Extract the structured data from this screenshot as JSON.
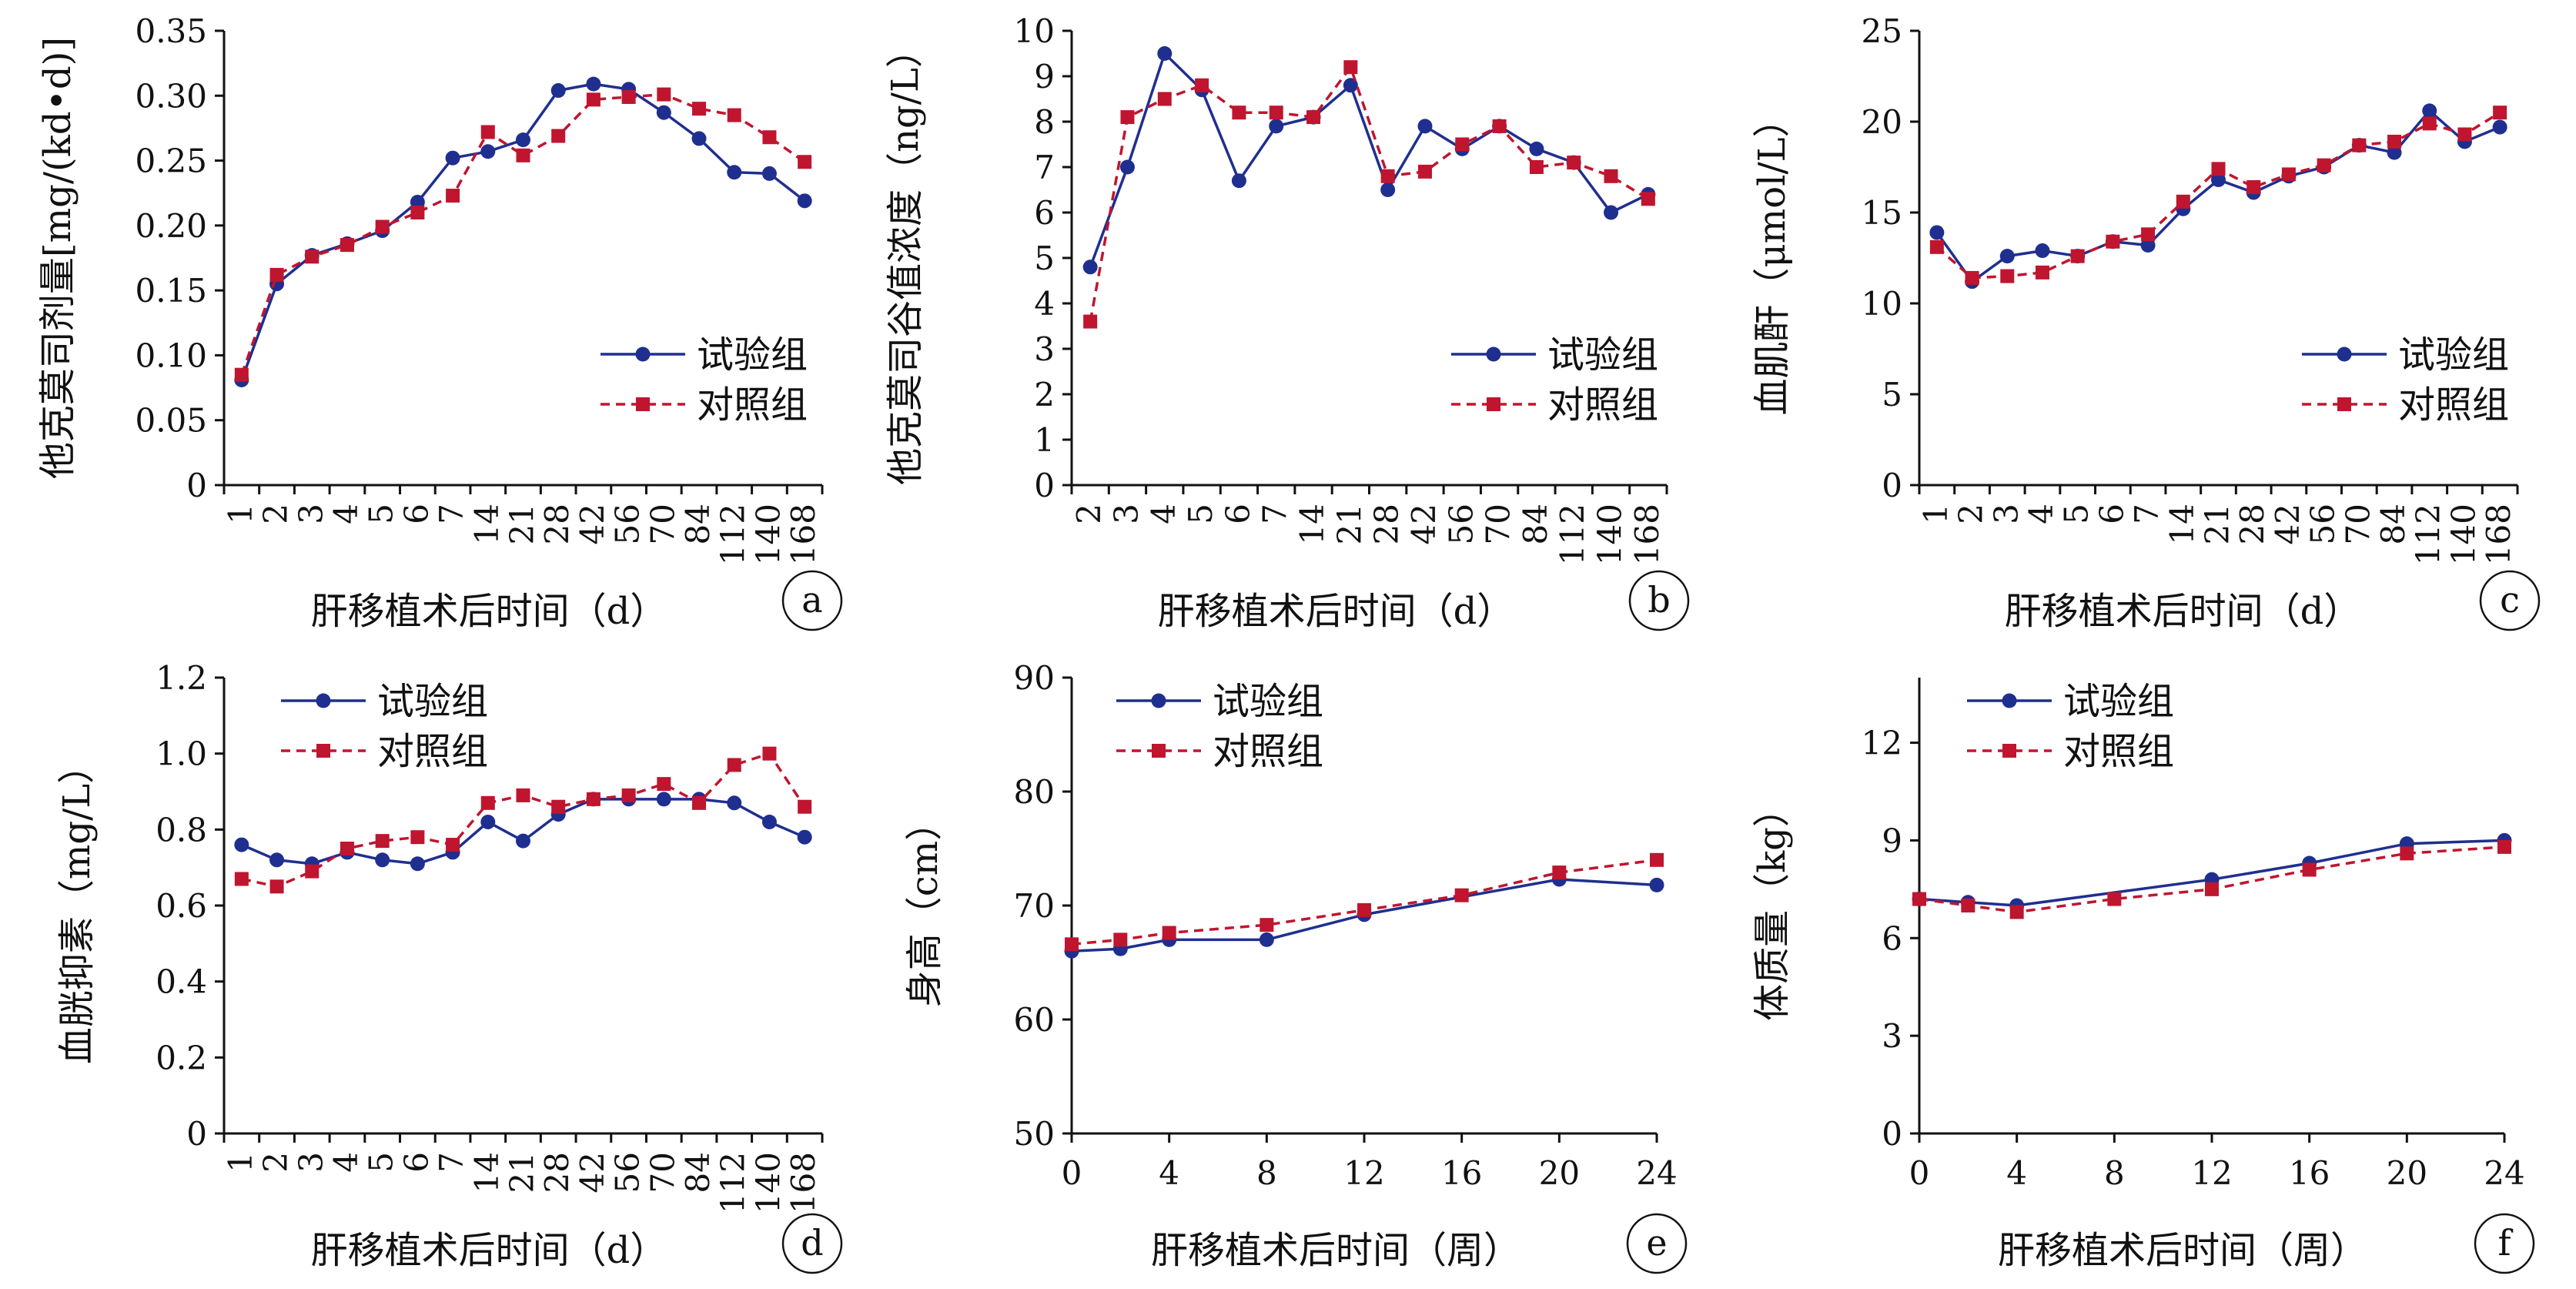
{
  "colors": {
    "test": "#1f2f8f",
    "control": "#c0152f",
    "axis": "#111111"
  },
  "legend": {
    "test": "试验组",
    "control": "对照组"
  },
  "chart_data": [
    {
      "id": "a",
      "type": "line",
      "ylabel": "他克莫司剂量[mg/(kd•d)]",
      "xlabel": "肝移植术后时间（d）",
      "categories": [
        "1",
        "2",
        "3",
        "4",
        "5",
        "6",
        "7",
        "14",
        "21",
        "28",
        "42",
        "56",
        "70",
        "84",
        "112",
        "140",
        "168"
      ],
      "ylim": [
        0,
        0.35
      ],
      "yticks": [
        "0",
        "0.05",
        "0.10",
        "0.15",
        "0.20",
        "0.25",
        "0.30",
        "0.35"
      ],
      "series": [
        {
          "name": "试验组",
          "values": [
            0.081,
            0.155,
            0.177,
            0.186,
            0.196,
            0.218,
            0.252,
            0.257,
            0.266,
            0.304,
            0.309,
            0.305,
            0.287,
            0.267,
            0.241,
            0.24,
            0.219
          ]
        },
        {
          "name": "对照组",
          "values": [
            0.085,
            0.162,
            0.176,
            0.185,
            0.199,
            0.21,
            0.223,
            0.272,
            0.254,
            0.269,
            0.297,
            0.299,
            0.301,
            0.29,
            0.285,
            0.268,
            0.249
          ]
        }
      ]
    },
    {
      "id": "b",
      "type": "line",
      "ylabel": "他克莫司谷值浓度（ng/L）",
      "xlabel": "肝移植术后时间（d）",
      "categories": [
        "2",
        "3",
        "4",
        "5",
        "6",
        "7",
        "14",
        "21",
        "28",
        "42",
        "56",
        "70",
        "84",
        "112",
        "140",
        "168"
      ],
      "ylim": [
        0,
        10
      ],
      "yticks": [
        "0",
        "1",
        "2",
        "3",
        "4",
        "5",
        "6",
        "7",
        "8",
        "9",
        "10"
      ],
      "series": [
        {
          "name": "试验组",
          "values": [
            4.8,
            7.0,
            9.5,
            8.7,
            6.7,
            7.9,
            8.1,
            8.8,
            6.5,
            7.9,
            7.4,
            7.9,
            7.4,
            7.1,
            6.0,
            6.4
          ]
        },
        {
          "name": "对照组",
          "values": [
            3.6,
            8.1,
            8.5,
            8.8,
            8.2,
            8.2,
            8.1,
            9.2,
            6.8,
            6.9,
            7.5,
            7.9,
            7.0,
            7.1,
            6.8,
            6.3
          ]
        }
      ]
    },
    {
      "id": "c",
      "type": "line",
      "ylabel": "血肌酐（μmol/L）",
      "xlabel": "肝移植术后时间（d）",
      "categories": [
        "1",
        "2",
        "3",
        "4",
        "5",
        "6",
        "7",
        "14",
        "21",
        "28",
        "42",
        "56",
        "70",
        "84",
        "112",
        "140",
        "168"
      ],
      "ylim": [
        0,
        25
      ],
      "yticks": [
        "0",
        "5",
        "10",
        "15",
        "20",
        "25"
      ],
      "series": [
        {
          "name": "试验组",
          "values": [
            13.9,
            11.2,
            12.6,
            12.9,
            12.6,
            13.4,
            13.2,
            15.2,
            16.8,
            16.1,
            17.0,
            17.5,
            18.7,
            18.3,
            20.6,
            18.9,
            19.7
          ]
        },
        {
          "name": "对照组",
          "values": [
            13.1,
            11.4,
            11.5,
            11.7,
            12.6,
            13.4,
            13.8,
            15.6,
            17.4,
            16.4,
            17.1,
            17.6,
            18.7,
            18.9,
            19.9,
            19.3,
            20.5
          ]
        }
      ]
    },
    {
      "id": "d",
      "type": "line",
      "ylabel": "血胱抑素（mg/L）",
      "xlabel": "肝移植术后时间（d）",
      "categories": [
        "1",
        "2",
        "3",
        "4",
        "5",
        "6",
        "7",
        "14",
        "21",
        "28",
        "42",
        "56",
        "70",
        "84",
        "112",
        "140",
        "168"
      ],
      "ylim": [
        0,
        1.2
      ],
      "yticks": [
        "0",
        "0.2",
        "0.4",
        "0.6",
        "0.8",
        "1.0",
        "1.2"
      ],
      "series": [
        {
          "name": "试验组",
          "values": [
            0.76,
            0.72,
            0.71,
            0.74,
            0.72,
            0.71,
            0.74,
            0.82,
            0.77,
            0.84,
            0.88,
            0.88,
            0.88,
            0.88,
            0.87,
            0.82,
            0.78
          ]
        },
        {
          "name": "对照组",
          "values": [
            0.67,
            0.65,
            0.69,
            0.75,
            0.77,
            0.78,
            0.76,
            0.87,
            0.89,
            0.86,
            0.88,
            0.89,
            0.92,
            0.87,
            0.97,
            1.0,
            0.86
          ]
        }
      ]
    },
    {
      "id": "e",
      "type": "line",
      "ylabel": "身高（cm）",
      "xlabel": "肝移植术后时间（周）",
      "categories": [
        "0",
        "4",
        "8",
        "12",
        "16",
        "20",
        "24"
      ],
      "xlim": [
        0,
        24
      ],
      "ylim": [
        50,
        90
      ],
      "yticks": [
        "50",
        "60",
        "70",
        "80",
        "90"
      ],
      "series": [
        {
          "name": "试验组",
          "x": [
            0,
            2,
            4,
            8,
            12,
            20,
            24
          ],
          "values": [
            66.0,
            66.2,
            67.0,
            67.0,
            69.2,
            72.3,
            71.8
          ]
        },
        {
          "name": "对照组",
          "x": [
            0,
            2,
            4,
            8,
            12,
            16,
            20,
            24
          ],
          "values": [
            66.6,
            67.0,
            67.6,
            68.3,
            69.6,
            70.9,
            72.9,
            74.0
          ]
        }
      ]
    },
    {
      "id": "f",
      "type": "line",
      "ylabel": "体质量（kg）",
      "xlabel": "肝移植术后时间（周）",
      "categories": [
        "0",
        "4",
        "8",
        "12",
        "16",
        "20",
        "24"
      ],
      "xlim": [
        0,
        24
      ],
      "ylim": [
        0,
        14
      ],
      "yticks": [
        "0",
        "3",
        "6",
        "9",
        "12"
      ],
      "series": [
        {
          "name": "试验组",
          "x": [
            0,
            2,
            4,
            12,
            16,
            20,
            24
          ],
          "values": [
            7.2,
            7.1,
            7.0,
            7.8,
            8.3,
            8.9,
            9.0
          ]
        },
        {
          "name": "对照组",
          "x": [
            0,
            2,
            4,
            8,
            12,
            16,
            20,
            24
          ],
          "values": [
            7.2,
            7.0,
            6.8,
            7.2,
            7.5,
            8.1,
            8.6,
            8.8
          ]
        }
      ]
    }
  ]
}
